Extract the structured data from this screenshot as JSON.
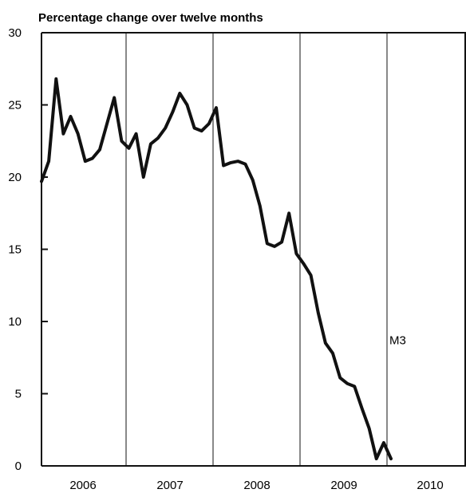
{
  "chart_data": {
    "type": "line",
    "title": "Percentage change over twelve months",
    "xlabel": "",
    "ylabel": "",
    "ylim": [
      0,
      30
    ],
    "yticks": [
      0,
      5,
      10,
      15,
      20,
      25,
      30
    ],
    "xlim": [
      2006.0,
      2010.5
    ],
    "xticks": [
      {
        "label": "2006",
        "value": 2006.5
      },
      {
        "label": "2007",
        "value": 2007.5
      },
      {
        "label": "2008",
        "value": 2008.5
      },
      {
        "label": "2009",
        "value": 2009.5
      },
      {
        "label": "2010",
        "value": 2010.5
      }
    ],
    "year_dividers": [
      2007.0,
      2008.0,
      2009.0,
      2010.0
    ],
    "grid": false,
    "series": [
      {
        "name": "M3",
        "color": "#111111",
        "x": [
          2006.0,
          2006.083,
          2006.167,
          2006.25,
          2006.333,
          2006.417,
          2006.5,
          2006.583,
          2006.667,
          2006.75,
          2006.833,
          2006.917,
          2007.0,
          2007.083,
          2007.167,
          2007.25,
          2007.333,
          2007.417,
          2007.5,
          2007.583,
          2007.667,
          2007.75,
          2007.833,
          2007.917,
          2008.0,
          2008.083,
          2008.167,
          2008.25,
          2008.333,
          2008.417,
          2008.5,
          2008.583,
          2008.667,
          2008.75,
          2008.833,
          2008.917,
          2009.0,
          2009.083,
          2009.167,
          2009.25,
          2009.333,
          2009.417,
          2009.5,
          2009.583,
          2009.667,
          2009.75,
          2009.833,
          2009.917,
          2010.0
        ],
        "y": [
          19.7,
          21.1,
          26.8,
          23.0,
          24.2,
          23.0,
          21.1,
          21.3,
          21.9,
          23.7,
          25.5,
          22.5,
          22.0,
          23.0,
          20.0,
          22.3,
          22.7,
          23.4,
          24.5,
          25.8,
          25.0,
          23.4,
          23.2,
          23.7,
          24.8,
          20.8,
          21.0,
          21.1,
          20.9,
          19.8,
          18.0,
          15.4,
          15.2,
          15.5,
          17.5,
          14.7,
          14.0,
          13.2,
          10.6,
          8.5,
          7.8,
          6.1,
          5.7,
          5.5,
          4.0,
          2.6,
          0.5,
          1.6,
          0.5
        ]
      }
    ],
    "annotations": [
      {
        "text": "M3",
        "x": 2010.0,
        "y": 8.7
      }
    ]
  }
}
